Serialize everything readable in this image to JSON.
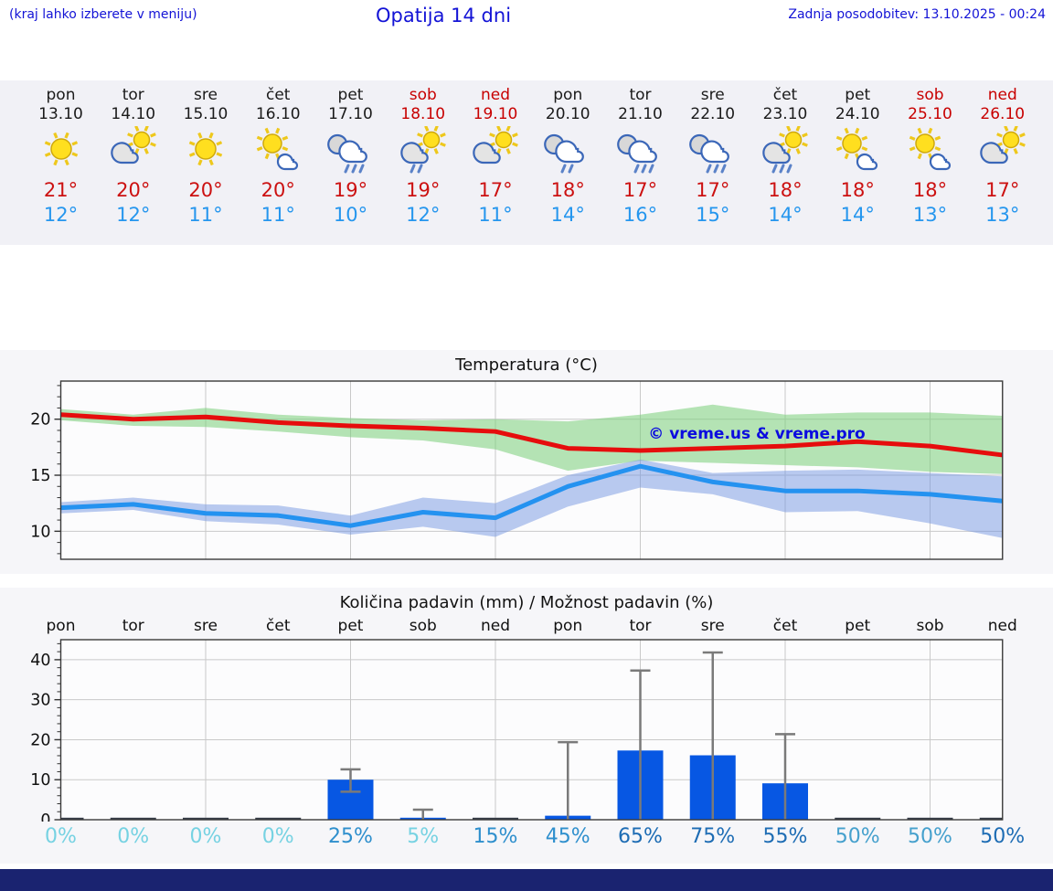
{
  "header": {
    "note": "(kraj lahko izberete v meniju)",
    "title": "Opatija 14 dni",
    "updated": "Zadnja posodobitev: 13.10.2025 - 00:24",
    "text_color": "#1313d6"
  },
  "forecast": {
    "bg": "#f1f1f6",
    "max_color": "#cc1111",
    "min_color": "#2596ee",
    "weekday_color": "#1a1a1a",
    "weekend_color": "#c80000",
    "days": [
      {
        "name": "pon",
        "date": "13.10",
        "weekend": false,
        "icon": {
          "sun": true,
          "cloud": "none",
          "rain": 0
        },
        "max": "21°",
        "min": "12°"
      },
      {
        "name": "tor",
        "date": "14.10",
        "weekend": false,
        "icon": {
          "sun": true,
          "cloud": "big",
          "rain": 0
        },
        "max": "20°",
        "min": "12°"
      },
      {
        "name": "sre",
        "date": "15.10",
        "weekend": false,
        "icon": {
          "sun": true,
          "cloud": "none",
          "rain": 0
        },
        "max": "20°",
        "min": "11°"
      },
      {
        "name": "čet",
        "date": "16.10",
        "weekend": false,
        "icon": {
          "sun": true,
          "cloud": "small",
          "rain": 0
        },
        "max": "20°",
        "min": "11°"
      },
      {
        "name": "pet",
        "date": "17.10",
        "weekend": false,
        "icon": {
          "sun": false,
          "cloud": "double",
          "rain": 3
        },
        "max": "19°",
        "min": "10°"
      },
      {
        "name": "sob",
        "date": "18.10",
        "weekend": true,
        "icon": {
          "sun": true,
          "cloud": "big",
          "rain": 2
        },
        "max": "19°",
        "min": "12°"
      },
      {
        "name": "ned",
        "date": "19.10",
        "weekend": true,
        "icon": {
          "sun": true,
          "cloud": "big",
          "rain": 0
        },
        "max": "17°",
        "min": "11°"
      },
      {
        "name": "pon",
        "date": "20.10",
        "weekend": false,
        "icon": {
          "sun": false,
          "cloud": "double",
          "rain": 2
        },
        "max": "18°",
        "min": "14°"
      },
      {
        "name": "tor",
        "date": "21.10",
        "weekend": false,
        "icon": {
          "sun": false,
          "cloud": "double",
          "rain": 3
        },
        "max": "17°",
        "min": "16°"
      },
      {
        "name": "sre",
        "date": "22.10",
        "weekend": false,
        "icon": {
          "sun": false,
          "cloud": "double",
          "rain": 3
        },
        "max": "17°",
        "min": "15°"
      },
      {
        "name": "čet",
        "date": "23.10",
        "weekend": false,
        "icon": {
          "sun": true,
          "cloud": "big",
          "rain": 3
        },
        "max": "18°",
        "min": "14°"
      },
      {
        "name": "pet",
        "date": "24.10",
        "weekend": false,
        "icon": {
          "sun": true,
          "cloud": "small",
          "rain": 0
        },
        "max": "18°",
        "min": "14°"
      },
      {
        "name": "sob",
        "date": "25.10",
        "weekend": true,
        "icon": {
          "sun": true,
          "cloud": "small",
          "rain": 0
        },
        "max": "18°",
        "min": "13°"
      },
      {
        "name": "ned",
        "date": "26.10",
        "weekend": true,
        "icon": {
          "sun": true,
          "cloud": "big",
          "rain": 0
        },
        "max": "17°",
        "min": "13°"
      }
    ]
  },
  "chart_data": [
    {
      "type": "line",
      "title": "Temperatura (°C)",
      "watermark": "© vreme.us & vreme.pro",
      "watermark_color": "#0b0bdf",
      "ylim": [
        7.5,
        23.4
      ],
      "yticks": [
        10,
        15,
        20
      ],
      "grid": true,
      "series": [
        {
          "name": "max-temperature",
          "color": "#e60d0d",
          "values": [
            20.4,
            20.0,
            20.2,
            19.7,
            19.4,
            19.2,
            18.9,
            17.4,
            17.2,
            17.4,
            17.6,
            18.0,
            17.6,
            16.8
          ]
        },
        {
          "name": "min-temperature",
          "color": "#2492f0",
          "values": [
            12.1,
            12.4,
            11.6,
            11.4,
            10.5,
            11.7,
            11.2,
            14.0,
            15.8,
            14.4,
            13.6,
            13.6,
            13.3,
            12.7
          ]
        }
      ],
      "bands": [
        {
          "name": "max-range",
          "color": "rgba(120,205,120,0.55)",
          "low": [
            19.9,
            19.4,
            19.3,
            18.9,
            18.4,
            18.1,
            17.3,
            15.4,
            16.3,
            16.1,
            15.9,
            15.7,
            15.3,
            15.1
          ],
          "high": [
            20.9,
            20.4,
            21.0,
            20.4,
            20.1,
            19.9,
            20.0,
            19.8,
            20.4,
            21.3,
            20.4,
            20.6,
            20.6,
            20.3
          ]
        },
        {
          "name": "min-range",
          "color": "rgba(115,150,225,0.5)",
          "low": [
            11.6,
            11.9,
            10.9,
            10.6,
            9.7,
            10.4,
            9.5,
            12.2,
            13.9,
            13.3,
            11.7,
            11.8,
            10.7,
            9.4
          ],
          "high": [
            12.6,
            13.0,
            12.4,
            12.3,
            11.4,
            13.0,
            12.5,
            15.0,
            16.4,
            15.2,
            15.4,
            15.5,
            15.2,
            14.9
          ]
        }
      ]
    },
    {
      "type": "bar",
      "title": "Količina padavin (mm) / Možnost padavin (%)",
      "day_labels": [
        "pon",
        "tor",
        "sre",
        "čet",
        "pet",
        "sob",
        "ned",
        "pon",
        "tor",
        "sre",
        "čet",
        "pet",
        "sob",
        "ned"
      ],
      "ylim": [
        0,
        45
      ],
      "yticks": [
        0,
        10,
        20,
        30,
        40
      ],
      "grid": true,
      "bar_color": "#0757e3",
      "zero_bar_color": "#353b46",
      "err_color": "#7a7a7a",
      "values": [
        0,
        0,
        0,
        0,
        10,
        0.5,
        0.15,
        1,
        17.3,
        16.1,
        9.1,
        0.15,
        0.15,
        0.15
      ],
      "err_low": [
        null,
        null,
        null,
        null,
        7,
        0,
        null,
        0,
        0,
        0,
        0,
        null,
        null,
        null
      ],
      "err_high": [
        null,
        null,
        null,
        null,
        12.6,
        2.5,
        null,
        19.4,
        37.3,
        41.8,
        21.4,
        null,
        null,
        null
      ],
      "probabilities": [
        {
          "label": "0%",
          "color": "#76d2e2"
        },
        {
          "label": "0%",
          "color": "#76d2e2"
        },
        {
          "label": "0%",
          "color": "#76d2e2"
        },
        {
          "label": "0%",
          "color": "#76d2e2"
        },
        {
          "label": "25%",
          "color": "#2e8fcd"
        },
        {
          "label": "5%",
          "color": "#76d2e2"
        },
        {
          "label": "15%",
          "color": "#2e8fcd"
        },
        {
          "label": "45%",
          "color": "#2e8fcd"
        },
        {
          "label": "65%",
          "color": "#1d6cb4"
        },
        {
          "label": "75%",
          "color": "#1d6cb4"
        },
        {
          "label": "55%",
          "color": "#1d6cb4"
        },
        {
          "label": "50%",
          "color": "#45a0cd"
        },
        {
          "label": "50%",
          "color": "#45a0cd"
        },
        {
          "label": "50%",
          "color": "#1d6cb4"
        }
      ]
    }
  ],
  "footer": {
    "color": "#1a2370"
  }
}
